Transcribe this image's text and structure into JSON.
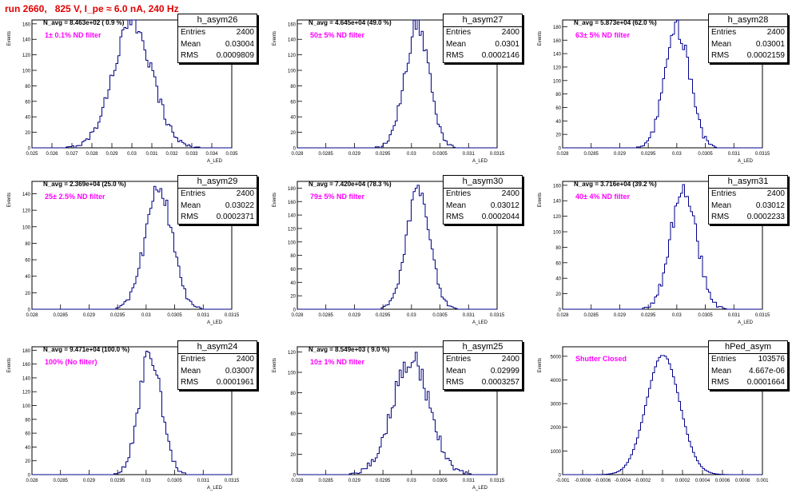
{
  "run_title": "run 2660,   825 V, I_pe ≈ 6.0 nA, 240 Hz",
  "stat_labels": {
    "entries": "Entries",
    "mean": "Mean",
    "rms": "RMS"
  },
  "chart_data": [
    {
      "type": "bar",
      "name": "h_asym26",
      "title": "N_avg = 8.463e+02 ( 0.9 %)",
      "annotation": "1± 0.1% ND filter",
      "ylabel": "Events",
      "xlabel": "A_LED",
      "xlim": [
        0.025,
        0.035
      ],
      "ylim": [
        0,
        165
      ],
      "yticks": [
        0,
        20,
        40,
        60,
        80,
        100,
        120,
        140,
        160
      ],
      "xticks": [
        "0.025",
        "0.026",
        "0.027",
        "0.028",
        "0.029",
        "0.03",
        "0.031",
        "0.032",
        "0.033",
        "0.034",
        "0.035"
      ],
      "entries": "2400",
      "mean": "0.03004",
      "rms": "0.0009809",
      "mean_value": 0.03004,
      "rms_value": 0.0009809,
      "peak": 162,
      "nbins": 100
    },
    {
      "type": "bar",
      "name": "h_asym27",
      "title": "N_avg = 4.645e+04 (49.0 %)",
      "annotation": "50± 5% ND filter",
      "ylabel": "Events",
      "xlabel": "A_LED",
      "xlim": [
        0.028,
        0.0315
      ],
      "ylim": [
        0,
        165
      ],
      "yticks": [
        0,
        20,
        40,
        60,
        80,
        100,
        120,
        140,
        160
      ],
      "xticks": [
        "0.028",
        "0.0285",
        "0.029",
        "0.0295",
        "0.03",
        "0.0305",
        "0.031",
        "0.0315"
      ],
      "entries": "2400",
      "mean": "0.0301",
      "rms": "0.0002146",
      "mean_value": 0.0301,
      "rms_value": 0.0002146,
      "peak": 156,
      "nbins": 100
    },
    {
      "type": "bar",
      "name": "h_asym28",
      "title": "N_avg = 5.873e+04 (62.0 %)",
      "annotation": "63± 5% ND filter",
      "ylabel": "Events",
      "xlabel": "A_LED",
      "xlim": [
        0.028,
        0.0315
      ],
      "ylim": [
        0,
        190
      ],
      "yticks": [
        0,
        20,
        40,
        60,
        80,
        100,
        120,
        140,
        160,
        180
      ],
      "xticks": [
        "0.028",
        "0.0285",
        "0.029",
        "0.0295",
        "0.03",
        "0.0305",
        "0.031",
        "0.0315"
      ],
      "entries": "2400",
      "mean": "0.03001",
      "rms": "0.0002159",
      "mean_value": 0.03001,
      "rms_value": 0.0002159,
      "peak": 178,
      "nbins": 100
    },
    {
      "type": "bar",
      "name": "h_asym29",
      "title": "N_avg = 2.369e+04 (25.0 %)",
      "annotation": "25± 2.5% ND filter",
      "ylabel": "Events",
      "xlabel": "A_LED",
      "xlim": [
        0.028,
        0.0315
      ],
      "ylim": [
        0,
        155
      ],
      "yticks": [
        0,
        20,
        40,
        60,
        80,
        100,
        120,
        140
      ],
      "xticks": [
        "0.028",
        "0.0285",
        "0.029",
        "0.0295",
        "0.03",
        "0.0305",
        "0.031",
        "0.0315"
      ],
      "entries": "2400",
      "mean": "0.03022",
      "rms": "0.0002371",
      "mean_value": 0.03022,
      "rms_value": 0.0002371,
      "peak": 146,
      "nbins": 100
    },
    {
      "type": "bar",
      "name": "h_asym30",
      "title": "N_avg = 7.420e+04 (78.3 %)",
      "annotation": "79± 5% ND filter",
      "ylabel": "Events",
      "xlabel": "A_LED",
      "xlim": [
        0.028,
        0.0315
      ],
      "ylim": [
        0,
        190
      ],
      "yticks": [
        0,
        20,
        40,
        60,
        80,
        100,
        120,
        140,
        160,
        180
      ],
      "xticks": [
        "0.028",
        "0.0285",
        "0.029",
        "0.0295",
        "0.03",
        "0.0305",
        "0.031",
        "0.0315"
      ],
      "entries": "2400",
      "mean": "0.03012",
      "rms": "0.0002044",
      "mean_value": 0.03012,
      "rms_value": 0.0002044,
      "peak": 178,
      "nbins": 100
    },
    {
      "type": "bar",
      "name": "h_asym31",
      "title": "N_avg = 3.716e+04 (39.2 %)",
      "annotation": "40± 4% ND filter",
      "ylabel": "Events",
      "xlabel": "A_LED",
      "xlim": [
        0.028,
        0.0315
      ],
      "ylim": [
        0,
        165
      ],
      "yticks": [
        0,
        20,
        40,
        60,
        80,
        100,
        120,
        140,
        160
      ],
      "xticks": [
        "0.028",
        "0.0285",
        "0.029",
        "0.0295",
        "0.03",
        "0.0305",
        "0.031",
        "0.0315"
      ],
      "entries": "2400",
      "mean": "0.03012",
      "rms": "0.0002233",
      "mean_value": 0.03012,
      "rms_value": 0.0002233,
      "peak": 160,
      "nbins": 100
    },
    {
      "type": "bar",
      "name": "h_asym24",
      "title": "N_avg = 9.471e+04 (100.0 %)",
      "annotation": "100% (No filter)",
      "ylabel": "Events",
      "xlabel": "A_LED",
      "xlim": [
        0.028,
        0.0315
      ],
      "ylim": [
        0,
        185
      ],
      "yticks": [
        0,
        20,
        40,
        60,
        80,
        100,
        120,
        140,
        160,
        180
      ],
      "xticks": [
        "0.028",
        "0.0285",
        "0.029",
        "0.0295",
        "0.03",
        "0.0305",
        "0.031",
        "0.0315"
      ],
      "entries": "2400",
      "mean": "0.03007",
      "rms": "0.0001961",
      "mean_value": 0.03007,
      "rms_value": 0.0001961,
      "peak": 176,
      "nbins": 100
    },
    {
      "type": "bar",
      "name": "h_asym25",
      "title": "N_avg = 8.549e+03 ( 9.0 %)",
      "annotation": "10± 1% ND filter",
      "ylabel": "Events",
      "xlabel": "A_LED",
      "xlim": [
        0.028,
        0.0315
      ],
      "ylim": [
        0,
        125
      ],
      "yticks": [
        0,
        20,
        40,
        60,
        80,
        100,
        120
      ],
      "xticks": [
        "0.028",
        "0.0285",
        "0.029",
        "0.0295",
        "0.03",
        "0.0305",
        "0.031",
        "0.0315"
      ],
      "entries": "2400",
      "mean": "0.02999",
      "rms": "0.0003257",
      "mean_value": 0.02999,
      "rms_value": 0.0003257,
      "peak": 114,
      "nbins": 100
    },
    {
      "type": "bar",
      "name": "hPed_asym",
      "title": "",
      "annotation": "Shutter Closed",
      "ylabel": "Events",
      "xlabel": "",
      "xlim": [
        -0.001,
        0.001
      ],
      "ylim": [
        0,
        5400
      ],
      "yticks": [
        0,
        1000,
        2000,
        3000,
        4000,
        5000
      ],
      "xticks": [
        "-0.001",
        "-0.0008",
        "-0.0006",
        "-0.0004",
        "-0.0002",
        "0",
        "0.0002",
        "0.0004",
        "0.0006",
        "0.0008",
        "0.001"
      ],
      "entries": "103576",
      "mean": "4.667e-06",
      "rms": "0.0001664",
      "mean_value": 4.667e-06,
      "rms_value": 0.0001664,
      "peak": 5050,
      "nbins": 100
    }
  ]
}
